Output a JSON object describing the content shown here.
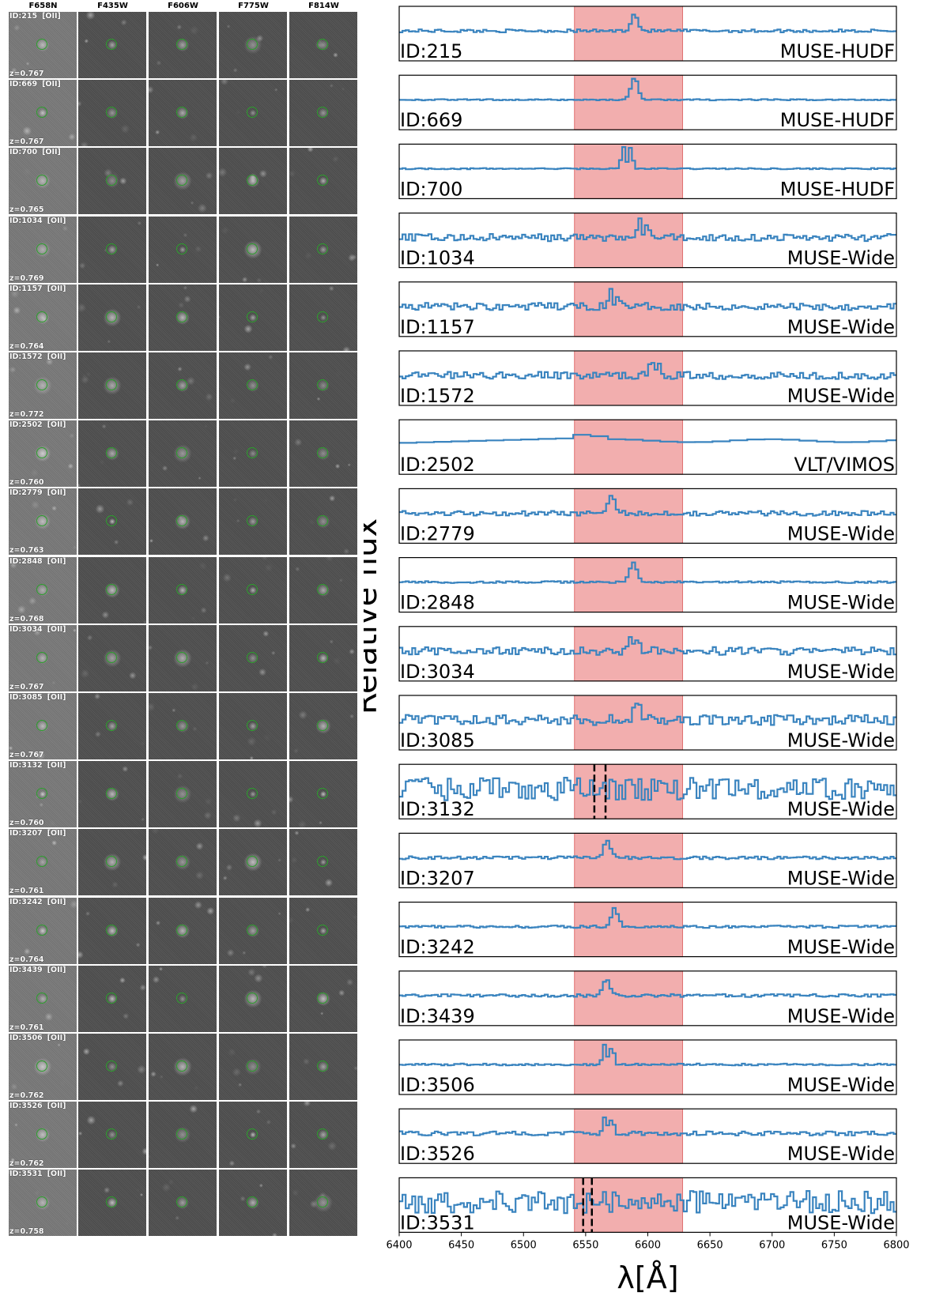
{
  "filters": [
    "F658N",
    "F435W",
    "F606W",
    "F775W",
    "F814W"
  ],
  "line_tag": "[OII]",
  "colors": {
    "spectrum": "#3a84bf",
    "band_fill": "#f2aeae",
    "band_edge": "#e07070",
    "marker_circle": "#2ca02c",
    "dashed_lines": "#000000"
  },
  "chart_data": {
    "type": "line",
    "title": "",
    "xlabel": "λ[Å]",
    "ylabel": "Relative flux",
    "xlim": [
      6400,
      6800
    ],
    "xticks": [
      6400,
      6450,
      6500,
      6550,
      6600,
      6650,
      6700,
      6750,
      6800
    ],
    "shaded_band": [
      6541,
      6628
    ],
    "panels": [
      {
        "id_label": "ID:215",
        "z_label": "z=0.767",
        "instrument": "MUSE-HUDF",
        "peak_x": 6588,
        "peak_height": 0.55,
        "noise": 0.05,
        "peak_type": "single"
      },
      {
        "id_label": "ID:669",
        "z_label": "z=0.767",
        "instrument": "MUSE-HUDF",
        "peak_x": 6588,
        "peak_height": 0.75,
        "noise": 0.02,
        "peak_type": "single"
      },
      {
        "id_label": "ID:700",
        "z_label": "z=0.765",
        "instrument": "MUSE-HUDF",
        "peak_x": 6582,
        "peak_height": 0.75,
        "noise": 0.02,
        "peak_type": "double"
      },
      {
        "id_label": "ID:1034",
        "z_label": "z=0.769",
        "instrument": "MUSE-Wide",
        "peak_x": 6595,
        "peak_height": 0.55,
        "noise": 0.12,
        "peak_type": "double"
      },
      {
        "id_label": "ID:1157",
        "z_label": "z=0.764",
        "instrument": "MUSE-Wide",
        "peak_x": 6572,
        "peak_height": 0.5,
        "noise": 0.12,
        "peak_type": "double"
      },
      {
        "id_label": "ID:1572",
        "z_label": "z=0.772",
        "instrument": "MUSE-Wide",
        "peak_x": 6605,
        "peak_height": 0.5,
        "noise": 0.12,
        "peak_type": "double"
      },
      {
        "id_label": "ID:2502",
        "z_label": "z=0.760",
        "instrument": "VLT/VIMOS",
        "peak_x": 6550,
        "peak_height": 0.35,
        "noise": 0.0,
        "peak_type": "broad"
      },
      {
        "id_label": "ID:2779",
        "z_label": "z=0.763",
        "instrument": "MUSE-Wide",
        "peak_x": 6570,
        "peak_height": 0.55,
        "noise": 0.08,
        "peak_type": "single"
      },
      {
        "id_label": "ID:2848",
        "z_label": "z=0.768",
        "instrument": "MUSE-Wide",
        "peak_x": 6587,
        "peak_height": 0.65,
        "noise": 0.03,
        "peak_type": "single"
      },
      {
        "id_label": "ID:3034",
        "z_label": "z=0.767",
        "instrument": "MUSE-Wide",
        "peak_x": 6588,
        "peak_height": 0.55,
        "noise": 0.13,
        "peak_type": "double"
      },
      {
        "id_label": "ID:3085",
        "z_label": "z=0.767",
        "instrument": "MUSE-Wide",
        "peak_x": 6590,
        "peak_height": 0.5,
        "noise": 0.17,
        "peak_type": "single"
      },
      {
        "id_label": "ID:3132",
        "z_label": "z=0.760",
        "instrument": "MUSE-Wide",
        "peak_x": 6560,
        "peak_height": 0.0,
        "noise": 0.38,
        "peak_type": "none",
        "dashed_x": [
          6557,
          6566
        ]
      },
      {
        "id_label": "ID:3207",
        "z_label": "z=0.761",
        "instrument": "MUSE-Wide",
        "peak_x": 6566,
        "peak_height": 0.55,
        "noise": 0.05,
        "peak_type": "single"
      },
      {
        "id_label": "ID:3242",
        "z_label": "z=0.764",
        "instrument": "MUSE-Wide",
        "peak_x": 6572,
        "peak_height": 0.6,
        "noise": 0.04,
        "peak_type": "single"
      },
      {
        "id_label": "ID:3439",
        "z_label": "z=0.761",
        "instrument": "MUSE-Wide",
        "peak_x": 6565,
        "peak_height": 0.55,
        "noise": 0.05,
        "peak_type": "single"
      },
      {
        "id_label": "ID:3506",
        "z_label": "z=0.762",
        "instrument": "MUSE-Wide",
        "peak_x": 6567,
        "peak_height": 0.65,
        "noise": 0.03,
        "peak_type": "double"
      },
      {
        "id_label": "ID:3526",
        "z_label": "z=0.762",
        "instrument": "MUSE-Wide",
        "peak_x": 6567,
        "peak_height": 0.55,
        "noise": 0.07,
        "peak_type": "double"
      },
      {
        "id_label": "ID:3531",
        "z_label": "z=0.758",
        "instrument": "MUSE-Wide",
        "peak_x": 6550,
        "peak_height": 0.0,
        "noise": 0.38,
        "peak_type": "none",
        "dashed_x": [
          6548,
          6555
        ]
      }
    ]
  }
}
